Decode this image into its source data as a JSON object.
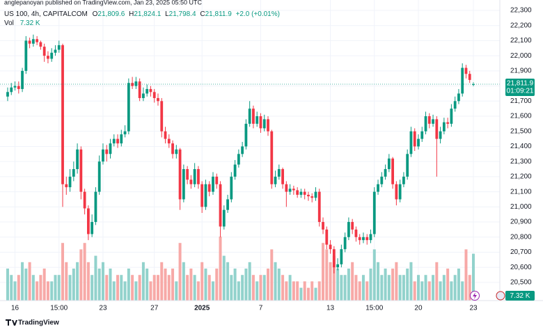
{
  "chart_data": {
    "type": "candlestick",
    "published": "anglepanoyan published on TradingView.com, Jan 23, 2025 05:50 UTC",
    "title": "US 100, 4h, CAPITALCOM",
    "legend_keys": [
      "O",
      "H",
      "L",
      "C"
    ],
    "ohlc_labels": [
      "21,809.6",
      "21,824.1",
      "21,798.4",
      "21,811.9"
    ],
    "change": "+2.0 (+0.01%)",
    "countdown": "01:09:21",
    "up_color": "#089981",
    "down_color": "#f23645",
    "up_volume_color": "#92d2cc",
    "down_volume_color": "#f7a9a7",
    "grid": true,
    "categories": [
      null,
      null,
      "16",
      null,
      null,
      null,
      null,
      null,
      null,
      null,
      null,
      null,
      null,
      null,
      "15:00",
      null,
      null,
      null,
      null,
      null,
      null,
      null,
      null,
      null,
      null,
      null,
      "23",
      null,
      null,
      null,
      null,
      null,
      null,
      null,
      null,
      null,
      null,
      null,
      null,
      null,
      "27",
      null,
      null,
      null,
      null,
      null,
      null,
      null,
      null,
      null,
      null,
      null,
      null,
      "2025",
      null,
      null,
      null,
      null,
      null,
      null,
      null,
      null,
      null,
      null,
      null,
      null,
      null,
      null,
      null,
      "7",
      null,
      null,
      null,
      null,
      null,
      null,
      null,
      null,
      null,
      null,
      null,
      null,
      null,
      null,
      null,
      null,
      null,
      null,
      "13",
      null,
      null,
      null,
      null,
      null,
      null,
      null,
      null,
      null,
      null,
      null,
      "15:00",
      null,
      null,
      null,
      null,
      null,
      null,
      null,
      null,
      null,
      null,
      null,
      "20",
      null,
      null,
      null,
      null,
      null,
      null,
      null,
      null,
      null,
      null,
      null,
      null,
      null,
      null,
      "23"
    ],
    "open": [
      21730,
      21760,
      21790,
      21800,
      21780,
      21900,
      22100,
      22080,
      22110,
      22090,
      22060,
      22000,
      21980,
      22020,
      22040,
      22070,
      21150,
      21130,
      21200,
      21250,
      21380,
      21100,
      20990,
      20820,
      20900,
      21100,
      21300,
      21380,
      21350,
      21420,
      21450,
      21420,
      21480,
      21500,
      21820,
      21800,
      21830,
      21720,
      21750,
      21780,
      21760,
      21720,
      21700,
      21500,
      21450,
      21420,
      21350,
      21380,
      21050,
      21250,
      21180,
      21150,
      21250,
      21150,
      21000,
      21150,
      21100,
      21200,
      21150,
      20870,
      20980,
      21050,
      21200,
      21280,
      21350,
      21400,
      21550,
      21650,
      21550,
      21600,
      21520,
      21580,
      21500,
      21150,
      21200,
      21250,
      21150,
      21100,
      21120,
      21110,
      21080,
      21100,
      21080,
      21070,
      21060,
      21100,
      20900,
      20850,
      20750,
      20720,
      20600,
      20620,
      20720,
      20800,
      20900,
      20850,
      20800,
      20780,
      20800,
      20780,
      20820,
      21100,
      21150,
      21200,
      21250,
      21320,
      21150,
      21050,
      21150,
      21200,
      21350,
      21500,
      21400,
      21450,
      21500,
      21600,
      21550,
      21580,
      21450,
      21500,
      21560,
      21550,
      21650,
      21700,
      21750,
      21920,
      21880,
      21809.6
    ],
    "high": [
      21790,
      21820,
      21830,
      21830,
      21920,
      22130,
      22120,
      22140,
      22130,
      22100,
      22080,
      22030,
      22050,
      22070,
      22100,
      22080,
      21200,
      21250,
      21300,
      21420,
      21400,
      21120,
      21010,
      20950,
      21130,
      21340,
      21420,
      21410,
      21450,
      21480,
      21480,
      21510,
      21540,
      21850,
      21860,
      21860,
      21850,
      21790,
      21810,
      21800,
      21780,
      21750,
      21720,
      21530,
      21480,
      21440,
      21410,
      21390,
      21280,
      21270,
      21210,
      21290,
      21270,
      21170,
      21180,
      21170,
      21230,
      21220,
      21170,
      21010,
      21080,
      21230,
      21310,
      21380,
      21430,
      21580,
      21700,
      21670,
      21630,
      21620,
      21610,
      21600,
      21510,
      21240,
      21280,
      21260,
      21170,
      21150,
      21140,
      21130,
      21120,
      21120,
      21100,
      21090,
      21130,
      21120,
      20930,
      20870,
      20780,
      20740,
      20660,
      20750,
      20830,
      20930,
      20920,
      20870,
      20820,
      20830,
      20820,
      20850,
      21130,
      21180,
      21230,
      21280,
      21350,
      21330,
      21170,
      21180,
      21230,
      21380,
      21530,
      21520,
      21480,
      21530,
      21630,
      21620,
      21610,
      21600,
      21530,
      21590,
      21590,
      21680,
      21730,
      21780,
      21950,
      21940,
      21900,
      21824.1
    ],
    "low": [
      21700,
      21740,
      21770,
      21750,
      21760,
      21880,
      22050,
      22060,
      22070,
      22040,
      21960,
      21950,
      21960,
      22000,
      22020,
      21000,
      21080,
      21100,
      21170,
      21220,
      21050,
      20950,
      20780,
      20800,
      20880,
      21080,
      21280,
      21300,
      21320,
      21400,
      21390,
      21400,
      21460,
      21480,
      21780,
      21780,
      21700,
      21700,
      21730,
      21730,
      21690,
      21670,
      21460,
      21420,
      21390,
      21320,
      21320,
      20980,
      21030,
      21150,
      21120,
      21130,
      21120,
      20960,
      20980,
      21070,
      21080,
      21120,
      20800,
      20850,
      20960,
      21030,
      21180,
      21260,
      21330,
      21380,
      21530,
      21520,
      21530,
      21490,
      21500,
      21470,
      21120,
      21130,
      21180,
      21120,
      21000,
      21080,
      21080,
      21060,
      21060,
      21050,
      21040,
      21030,
      21040,
      20870,
      20820,
      20720,
      20690,
      20560,
      20580,
      20600,
      20700,
      20780,
      20820,
      20770,
      20750,
      20760,
      20750,
      20760,
      20800,
      21080,
      21130,
      21180,
      21230,
      21120,
      21010,
      21030,
      21130,
      21180,
      21330,
      21370,
      21380,
      21430,
      21480,
      21520,
      21530,
      21200,
      21420,
      21480,
      21520,
      21530,
      21630,
      21680,
      21730,
      21850,
      21820,
      21798.4
    ],
    "close": [
      21760,
      21790,
      21800,
      21780,
      21900,
      22100,
      22080,
      22110,
      22090,
      22060,
      22000,
      21980,
      22020,
      22040,
      22070,
      21150,
      21130,
      21200,
      21250,
      21380,
      21100,
      20990,
      20820,
      20900,
      21100,
      21300,
      21380,
      21350,
      21420,
      21450,
      21420,
      21480,
      21500,
      21820,
      21800,
      21830,
      21720,
      21750,
      21780,
      21760,
      21720,
      21700,
      21500,
      21450,
      21420,
      21350,
      21380,
      21050,
      21250,
      21180,
      21150,
      21250,
      21150,
      21000,
      21150,
      21100,
      21200,
      21150,
      20870,
      20980,
      21050,
      21200,
      21280,
      21350,
      21400,
      21550,
      21650,
      21550,
      21600,
      21520,
      21580,
      21500,
      21150,
      21200,
      21250,
      21150,
      21100,
      21120,
      21110,
      21080,
      21100,
      21080,
      21070,
      21060,
      21100,
      20900,
      20850,
      20750,
      20720,
      20600,
      20620,
      20720,
      20800,
      20900,
      20850,
      20800,
      20780,
      20800,
      20780,
      20820,
      21100,
      21150,
      21200,
      21250,
      21320,
      21150,
      21050,
      21150,
      21200,
      21350,
      21500,
      21400,
      21450,
      21500,
      21600,
      21550,
      21580,
      21450,
      21500,
      21560,
      21550,
      21650,
      21700,
      21750,
      21920,
      21880,
      21840,
      21811.9
    ],
    "volume": {
      "name": "Vol",
      "value_label": "7.32 K",
      "values": [
        5,
        4,
        3,
        4,
        6,
        5,
        6,
        4,
        3,
        4,
        5,
        3,
        3,
        4,
        4,
        9,
        6,
        4,
        5,
        6,
        8,
        9,
        6,
        4,
        7,
        5,
        6,
        4,
        5,
        3,
        4,
        4,
        3,
        5,
        4,
        3,
        4,
        6,
        5,
        3,
        4,
        4,
        6,
        5,
        4,
        5,
        3,
        9,
        6,
        4,
        5,
        4,
        3,
        6,
        5,
        4,
        3,
        5,
        10,
        7,
        6,
        4,
        5,
        3,
        4,
        5,
        6,
        4,
        3,
        4,
        4,
        5,
        8,
        6,
        5,
        4,
        3,
        4,
        3,
        3,
        2,
        3,
        2,
        3,
        2,
        3,
        9,
        8,
        6,
        7,
        5,
        4,
        4,
        5,
        6,
        4,
        3,
        4,
        3,
        5,
        8,
        6,
        4,
        5,
        4,
        5,
        6,
        4,
        4,
        5,
        6,
        3,
        4,
        3,
        4,
        3,
        4,
        6,
        3,
        4,
        5,
        3,
        4,
        5,
        3,
        8,
        4,
        7.32
      ]
    },
    "ylim": [
      20380,
      22369
    ],
    "yticks": [
      {
        "value": 20500,
        "label": "20,500"
      },
      {
        "value": 20600,
        "label": "20,600"
      },
      {
        "value": 20700,
        "label": "20,700"
      },
      {
        "value": 20800,
        "label": "20,800"
      },
      {
        "value": 20900,
        "label": "20,900"
      },
      {
        "value": 21000,
        "label": "21,000"
      },
      {
        "value": 21100,
        "label": "21,100"
      },
      {
        "value": 21200,
        "label": "21,200"
      },
      {
        "value": 21300,
        "label": "21,300"
      },
      {
        "value": 21400,
        "label": "21,400"
      },
      {
        "value": 21500,
        "label": "21,500"
      },
      {
        "value": 21600,
        "label": "21,600"
      },
      {
        "value": 21700,
        "label": "21,700"
      },
      {
        "value": 21800,
        "label": "21,800"
      },
      {
        "value": 21900,
        "label": "21,900"
      },
      {
        "value": 22000,
        "label": "22,000"
      },
      {
        "value": 22100,
        "label": "22,100"
      },
      {
        "value": 22200,
        "label": "22,200"
      },
      {
        "value": 22300,
        "label": "22,300"
      }
    ],
    "brand": "TradingView"
  }
}
